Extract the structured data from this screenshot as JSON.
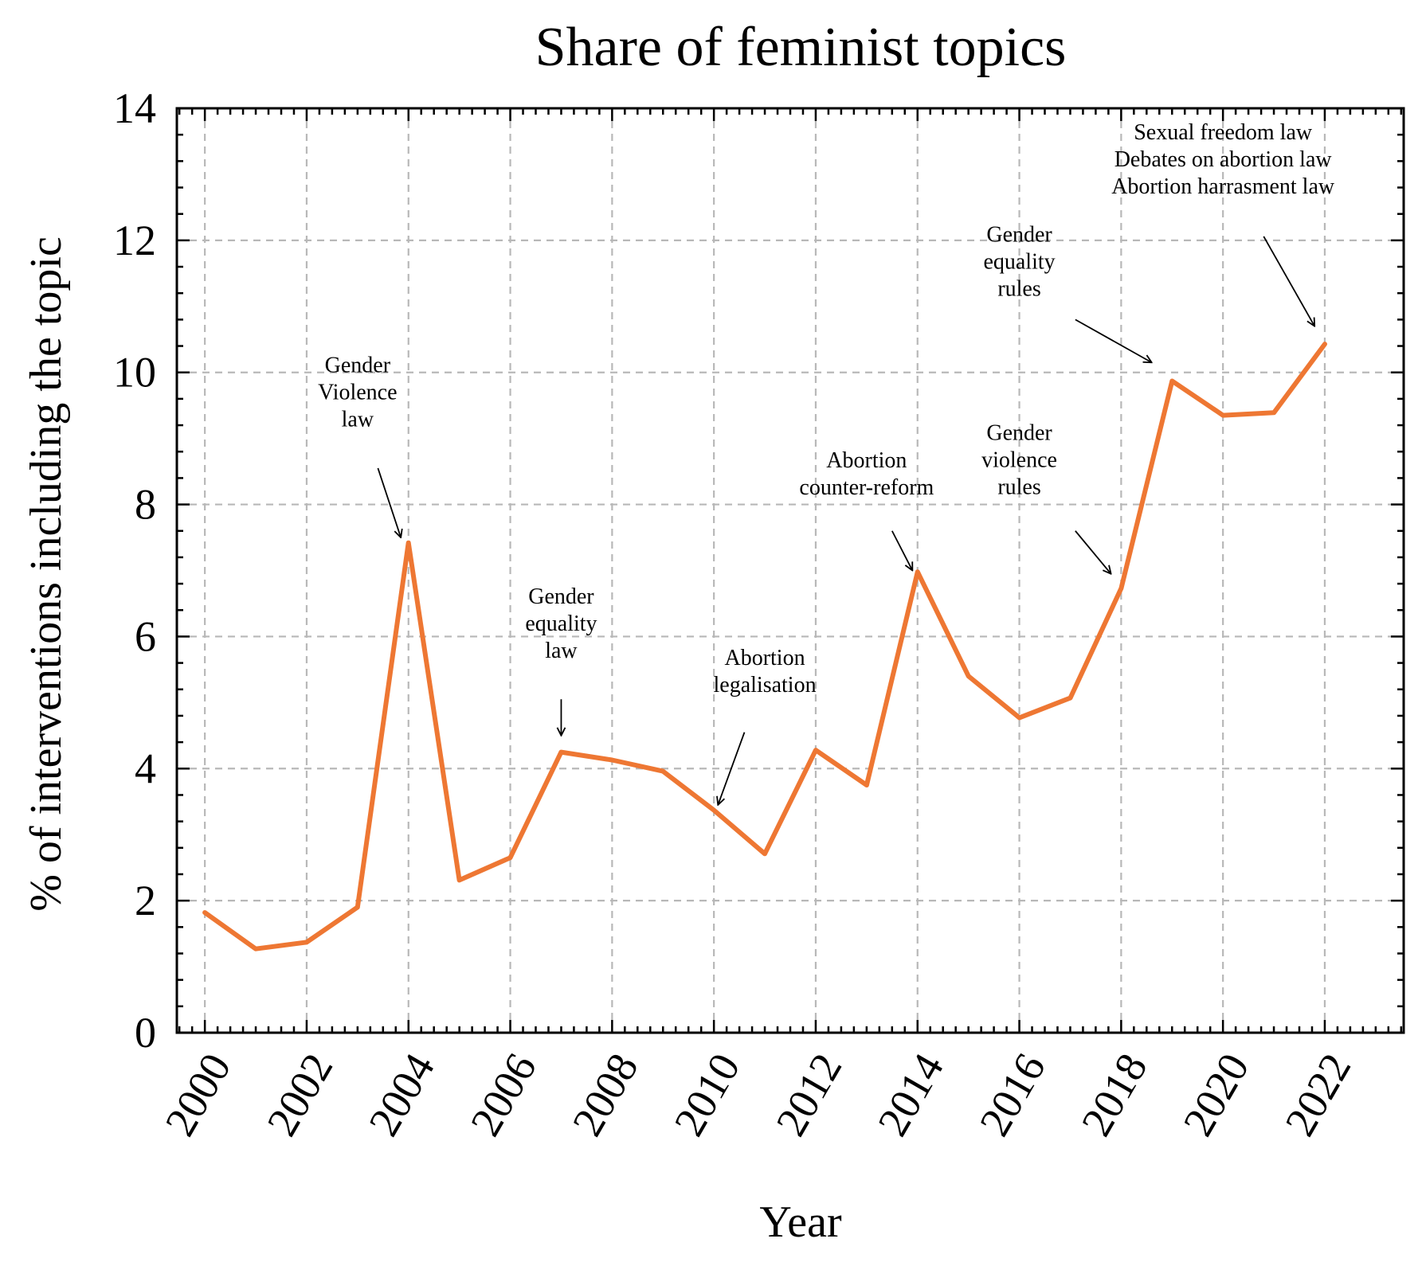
{
  "chart_data": {
    "type": "line",
    "title": "Share of feminist topics",
    "xlabel": "Year",
    "ylabel": "% of interventions including the topic",
    "xlim": [
      1999.45,
      2023.55
    ],
    "ylim": [
      0,
      14
    ],
    "grid": true,
    "x_ticks": [
      "2000",
      "2002",
      "2004",
      "2006",
      "2008",
      "2010",
      "2012",
      "2014",
      "2016",
      "2018",
      "2020",
      "2022"
    ],
    "y_ticks": [
      "0",
      "2",
      "4",
      "6",
      "8",
      "10",
      "12",
      "14"
    ],
    "series": [
      {
        "color": "#ee7733",
        "x": [
          2000,
          2001,
          2002,
          2003,
          2004,
          2005,
          2006,
          2007,
          2008,
          2009,
          2010,
          2011,
          2012,
          2013,
          2014,
          2015,
          2016,
          2017,
          2018,
          2019,
          2020,
          2021,
          2022
        ],
        "y": [
          1.82,
          1.27,
          1.37,
          1.9,
          7.42,
          2.31,
          2.65,
          4.25,
          4.13,
          3.96,
          3.37,
          2.71,
          4.28,
          3.75,
          6.98,
          5.4,
          4.77,
          5.07,
          6.73,
          9.87,
          9.35,
          9.39,
          10.43
        ]
      }
    ],
    "annotations": [
      {
        "lines": [
          "Gender",
          "Violence",
          "law"
        ],
        "text_x": 2003.0,
        "text_y": 10.0,
        "arrow_from": [
          2003.4,
          8.55
        ],
        "arrow_to": [
          2003.85,
          7.5
        ]
      },
      {
        "lines": [
          "Gender",
          "equality",
          "law"
        ],
        "text_x": 2007.0,
        "text_y": 6.5,
        "arrow_from": [
          2007.0,
          5.05
        ],
        "arrow_to": [
          2007.0,
          4.5
        ]
      },
      {
        "lines": [
          "Abortion",
          "legalisation"
        ],
        "text_x": 2011.0,
        "text_y": 5.57,
        "arrow_from": [
          2010.6,
          4.55
        ],
        "arrow_to": [
          2010.08,
          3.45
        ]
      },
      {
        "lines": [
          "Abortion",
          "counter-reform"
        ],
        "text_x": 2013.0,
        "text_y": 8.56,
        "arrow_from": [
          2013.5,
          7.6
        ],
        "arrow_to": [
          2013.9,
          7.0
        ]
      },
      {
        "lines": [
          "Gender",
          "violence",
          "rules"
        ],
        "text_x": 2016.0,
        "text_y": 8.98,
        "arrow_from": [
          2017.1,
          7.6
        ],
        "arrow_to": [
          2017.8,
          6.95
        ]
      },
      {
        "lines": [
          "Gender",
          "equality",
          "rules"
        ],
        "text_x": 2016.0,
        "text_y": 11.98,
        "arrow_from": [
          2017.1,
          10.8
        ],
        "arrow_to": [
          2018.6,
          10.15
        ]
      },
      {
        "lines": [
          "Sexual freedom law",
          "Debates on abortion law",
          "Abortion harrasment law"
        ],
        "text_x": 2020.0,
        "text_y": 13.53,
        "arrow_from": [
          2020.8,
          12.06
        ],
        "arrow_to": [
          2021.8,
          10.7
        ]
      }
    ]
  }
}
